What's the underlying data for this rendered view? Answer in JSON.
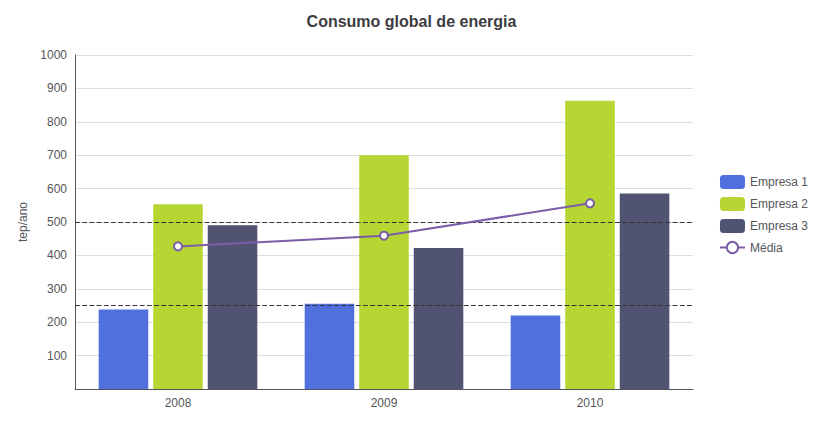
{
  "chart_data": {
    "type": "bar",
    "title": "Consumo global de energia",
    "ylabel": "tep/ano",
    "categories": [
      "2008",
      "2009",
      "2010"
    ],
    "series": [
      {
        "name": "Empresa 1",
        "values": [
          238,
          255,
          220
        ]
      },
      {
        "name": "Empresa 2",
        "values": [
          553,
          700,
          863
        ]
      },
      {
        "name": "Empresa 3",
        "values": [
          490,
          422,
          585
        ]
      },
      {
        "name": "Média",
        "type": "line",
        "color": "#7B5EA7",
        "values": [
          427,
          459,
          556
        ]
      }
    ],
    "hlines": [
      250,
      500
    ],
    "ylim": [
      0,
      1000
    ],
    "yticks": [
      100,
      200,
      300,
      400,
      500,
      600,
      700,
      800,
      900,
      1000
    ],
    "grid": true,
    "legend": "right"
  }
}
